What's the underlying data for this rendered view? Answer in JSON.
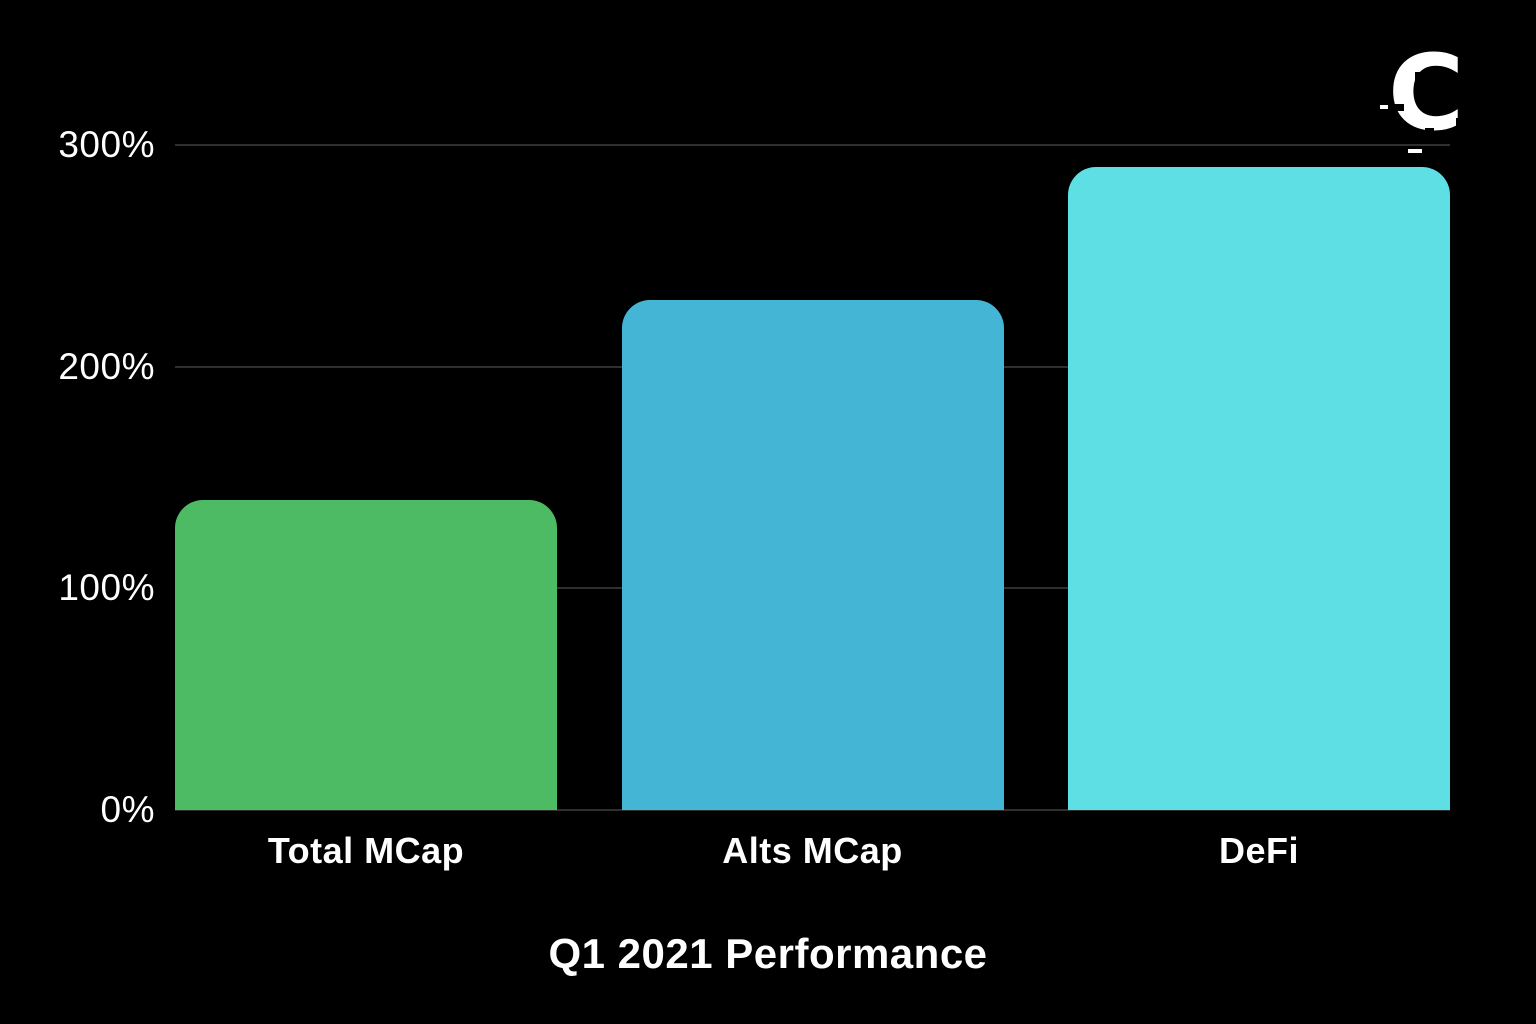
{
  "chart_data": {
    "type": "bar",
    "title": "Q1 2021 Performance",
    "categories": [
      "Total MCap",
      "Alts MCap",
      "DeFi"
    ],
    "values": [
      140,
      230,
      290
    ],
    "unit": "%",
    "ylim": [
      0,
      300
    ],
    "yticks": [
      {
        "value": 0,
        "label": "0%"
      },
      {
        "value": 100,
        "label": "100%"
      },
      {
        "value": 200,
        "label": "200%"
      },
      {
        "value": 300,
        "label": "300%"
      }
    ],
    "bar_colors": [
      "#4DBA64",
      "#45B5D6",
      "#5DDFE4"
    ],
    "grid": true,
    "gridline_color": "#2f2f2f",
    "background_color": "#000000",
    "text_color": "#ffffff",
    "xlabel": "",
    "ylabel": "",
    "legend": "none"
  },
  "logo": {
    "glyph": "C"
  }
}
